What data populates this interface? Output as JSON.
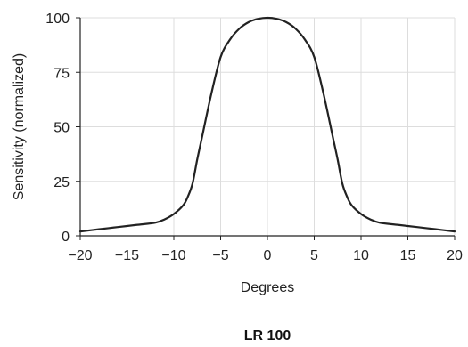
{
  "chart_data": {
    "type": "line",
    "title": "",
    "caption": "LR 100",
    "xlabel": "Degrees",
    "ylabel": "Sensitivity (normalized)",
    "xlim": [
      -20,
      20
    ],
    "ylim": [
      0,
      100
    ],
    "x_ticks": [
      -20,
      -15,
      -10,
      -5,
      0,
      5,
      10,
      15,
      20
    ],
    "y_ticks": [
      0,
      25,
      50,
      75,
      100
    ],
    "x_tick_labels": [
      "−20",
      "−15",
      "−10",
      "−5",
      "0",
      "5",
      "10",
      "15",
      "20"
    ],
    "y_tick_labels": [
      "0",
      "25",
      "50",
      "75",
      "100"
    ],
    "grid": true,
    "legend": "none",
    "series": [
      {
        "x": [
          -20,
          -18,
          -16,
          -14,
          -12,
          -11,
          -10,
          -9,
          -8.5,
          -8,
          -7.5,
          -7,
          -6,
          -5,
          -4,
          -3,
          -2,
          -1,
          0,
          1,
          2,
          3,
          4,
          5,
          6,
          7,
          7.5,
          8,
          8.5,
          9,
          10,
          11,
          12,
          14,
          16,
          18,
          20
        ],
        "y": [
          2,
          3,
          4,
          5,
          6,
          7.5,
          10,
          14,
          18,
          24,
          35,
          45,
          65,
          82,
          90,
          95,
          98,
          99.5,
          100,
          99.5,
          98,
          95,
          90,
          82,
          65,
          45,
          35,
          24,
          18,
          14,
          10,
          7.5,
          6,
          5,
          4,
          3,
          2
        ]
      }
    ],
    "colors": {
      "line": "#222222",
      "grid": "#dddddd",
      "axis": "#222222"
    }
  }
}
